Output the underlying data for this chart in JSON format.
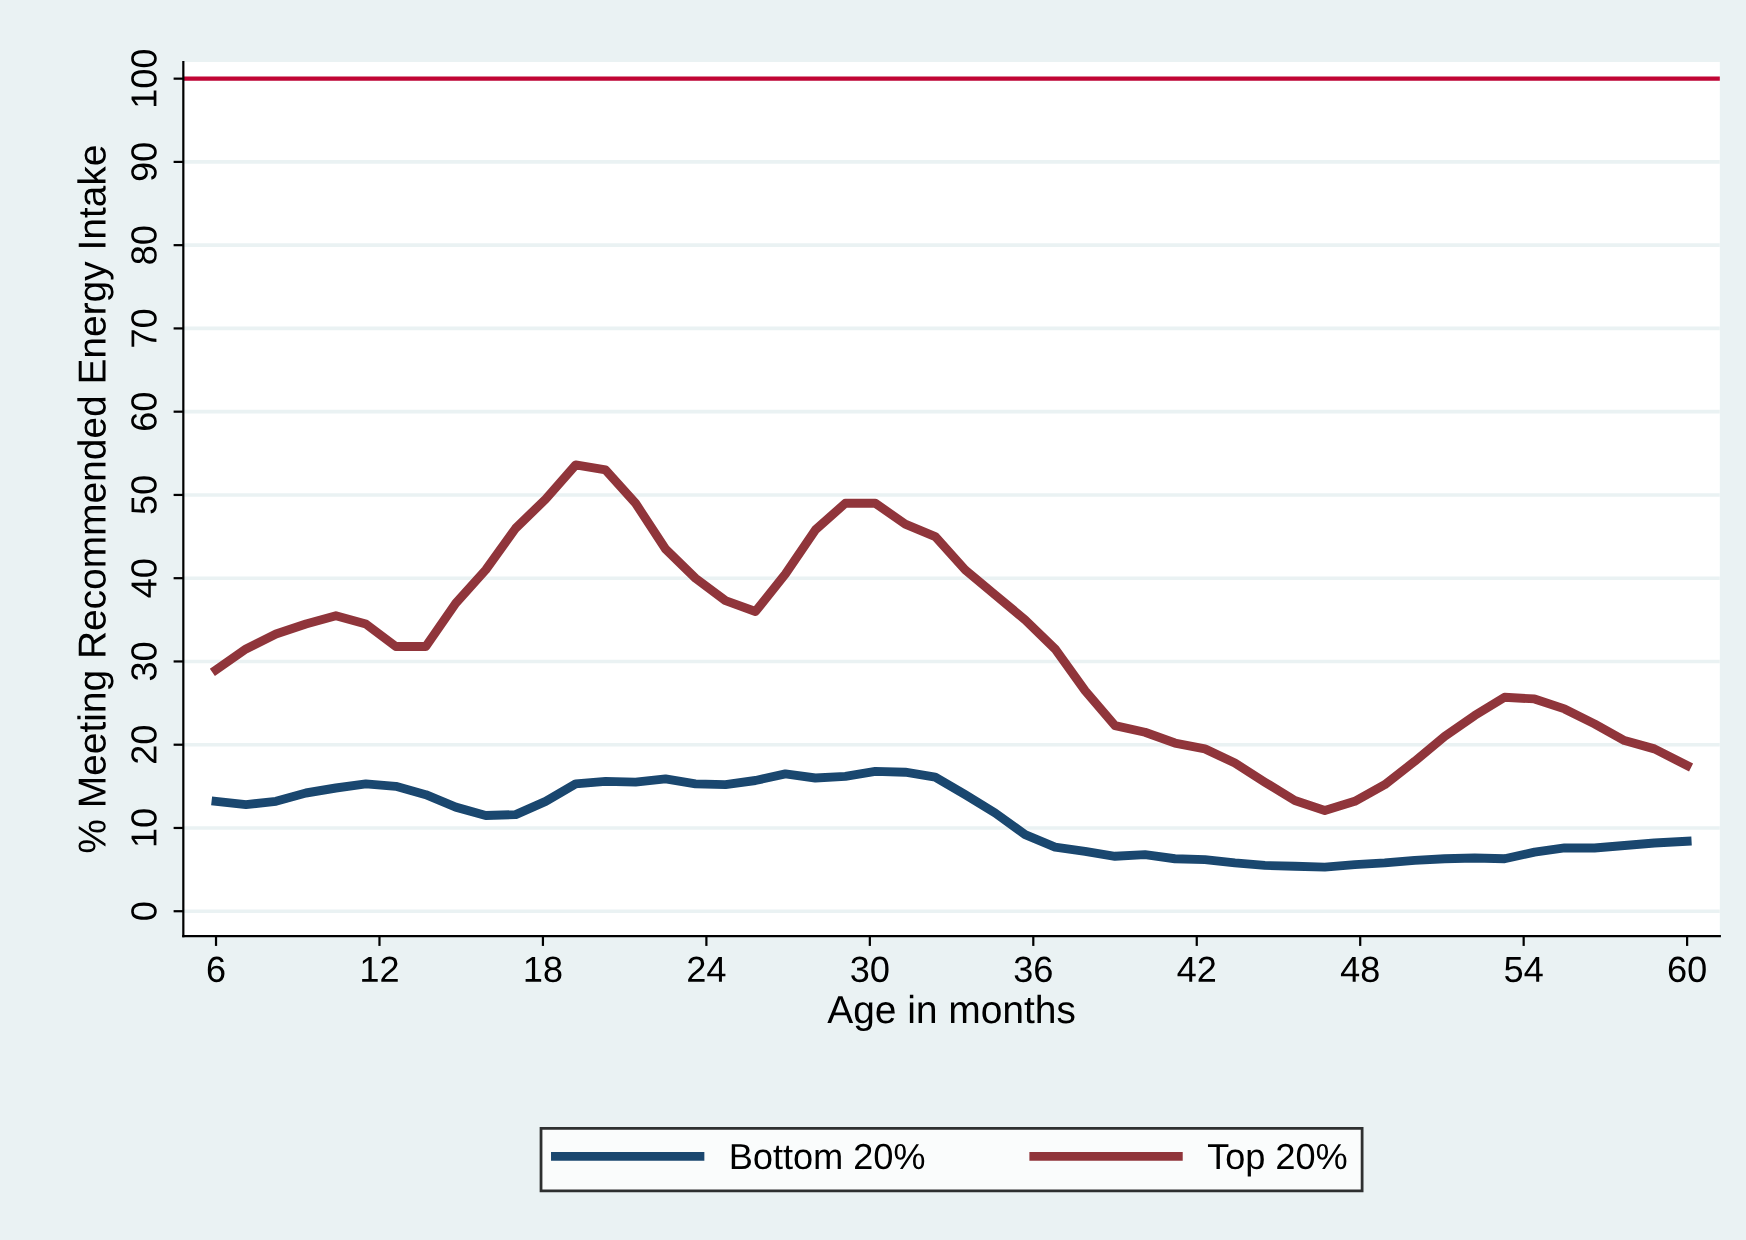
{
  "chart_data": {
    "type": "line",
    "xlabel": "Age in months",
    "ylabel": "% Meeting Recommended Energy Intake",
    "x": [
      6,
      7.1,
      8.2,
      9.3,
      10.4,
      11.5,
      12.6,
      13.7,
      14.8,
      15.9,
      17,
      18.1,
      19.2,
      20.3,
      21.4,
      22.5,
      23.6,
      24.7,
      25.8,
      26.9,
      28,
      29.1,
      30.2,
      31.3,
      32.4,
      33.5,
      34.6,
      35.7,
      36.8,
      37.9,
      39,
      40.1,
      41.2,
      42.3,
      43.4,
      44.5,
      45.6,
      46.7,
      47.8,
      48.9,
      50,
      51.1,
      52.2,
      53.3,
      54.4,
      55.5,
      56.6,
      57.7,
      58.8,
      60
    ],
    "series": [
      {
        "name": "Bottom 20%",
        "color": "#1a476f",
        "values": [
          13.2,
          12.8,
          13.2,
          14.2,
          14.8,
          15.3,
          15.0,
          14.0,
          12.5,
          11.5,
          11.6,
          13.2,
          15.3,
          15.6,
          15.5,
          15.9,
          15.3,
          15.2,
          15.7,
          16.5,
          16.0,
          16.2,
          16.8,
          16.7,
          16.1,
          14.0,
          11.8,
          9.2,
          7.7,
          7.2,
          6.6,
          6.8,
          6.3,
          6.2,
          5.8,
          5.5,
          5.4,
          5.3,
          5.6,
          5.8,
          6.1,
          6.3,
          6.4,
          6.3,
          7.1,
          7.6,
          7.6,
          7.9,
          8.2,
          8.4
        ]
      },
      {
        "name": "Top 20%",
        "color": "#90353b",
        "values": [
          29,
          31.5,
          33.3,
          34.5,
          35.5,
          34.5,
          31.8,
          31.8,
          37,
          41,
          46,
          49.5,
          53.6,
          53,
          49,
          43.5,
          40,
          37.3,
          36,
          40.5,
          45.8,
          49,
          49,
          46.5,
          45,
          41,
          38,
          35,
          31.5,
          26.5,
          22.3,
          21.5,
          20.2,
          19.5,
          17.8,
          15.5,
          13.3,
          12.1,
          13.2,
          15.2,
          18,
          21,
          23.5,
          25.7,
          25.5,
          24.3,
          22.5,
          20.5,
          19.5,
          17.5
        ]
      }
    ],
    "xlim": [
      4.8,
      61.2
    ],
    "ylim": [
      -3,
      102
    ],
    "xticks": [
      6,
      12,
      18,
      24,
      30,
      36,
      42,
      48,
      54,
      60
    ],
    "yticks": [
      0,
      10,
      20,
      30,
      40,
      50,
      60,
      70,
      80,
      90,
      100
    ],
    "ref_lines": [
      {
        "axis": "y",
        "value": 100,
        "color": "#c10534",
        "line_style": "solid"
      }
    ],
    "grid": "y",
    "legend": "bottom",
    "line_style": "solid",
    "marker": "none"
  }
}
